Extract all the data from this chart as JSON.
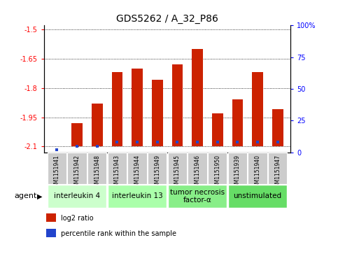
{
  "title": "GDS5262 / A_32_P86",
  "samples": [
    "GSM1151941",
    "GSM1151942",
    "GSM1151948",
    "GSM1151943",
    "GSM1151944",
    "GSM1151949",
    "GSM1151945",
    "GSM1151946",
    "GSM1151950",
    "GSM1151939",
    "GSM1151940",
    "GSM1151947"
  ],
  "log2_ratio": [
    -2.1,
    -1.98,
    -1.88,
    -1.72,
    -1.7,
    -1.76,
    -1.68,
    -1.6,
    -1.93,
    -1.86,
    -1.72,
    -1.91
  ],
  "percentile_rank": [
    2,
    5,
    5,
    8,
    8,
    8,
    8,
    8,
    8,
    8,
    8,
    8
  ],
  "bar_bottom": -2.1,
  "ylim": [
    -2.13,
    -1.48
  ],
  "yticks_left": [
    -2.1,
    -1.95,
    -1.8,
    -1.65,
    -1.5
  ],
  "yticks_right_pct": [
    0,
    25,
    50,
    75,
    100
  ],
  "yticks_right_labels": [
    "0",
    "25",
    "50",
    "75",
    "100%"
  ],
  "bar_color": "#cc2200",
  "blue_color": "#2244cc",
  "groups": [
    {
      "label": "interleukin 4",
      "start": 0,
      "end": 2,
      "color": "#ccffcc"
    },
    {
      "label": "interleukin 13",
      "start": 3,
      "end": 5,
      "color": "#aaffaa"
    },
    {
      "label": "tumor necrosis\nfactor-α",
      "start": 6,
      "end": 8,
      "color": "#88ee88"
    },
    {
      "label": "unstimulated",
      "start": 9,
      "end": 11,
      "color": "#66dd66"
    }
  ],
  "legend": [
    {
      "color": "#cc2200",
      "label": "log2 ratio"
    },
    {
      "color": "#2244cc",
      "label": "percentile rank within the sample"
    }
  ],
  "sample_bg": "#cccccc",
  "tick_fs": 7,
  "group_fs": 7.5,
  "title_fs": 10,
  "legend_fs": 7
}
